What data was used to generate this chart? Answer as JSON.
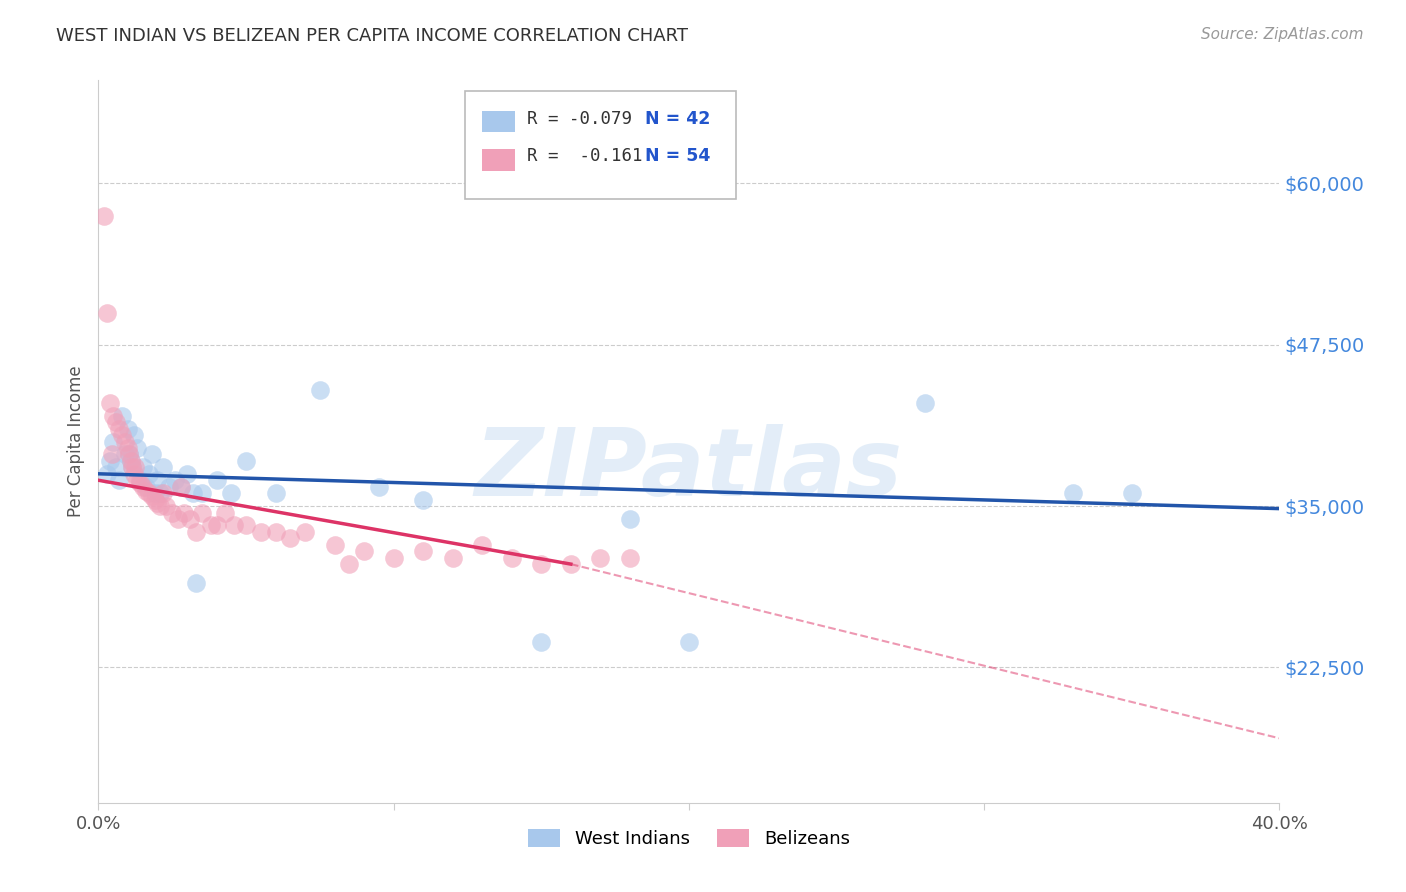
{
  "title": "WEST INDIAN VS BELIZEAN PER CAPITA INCOME CORRELATION CHART",
  "source": "Source: ZipAtlas.com",
  "ylabel": "Per Capita Income",
  "xlim": [
    0.0,
    40.0
  ],
  "ylim": [
    12000,
    68000
  ],
  "yticks": [
    22500,
    35000,
    47500,
    60000
  ],
  "ytick_labels": [
    "$22,500",
    "$35,000",
    "$47,500",
    "$60,000"
  ],
  "watermark": "ZIPatlas",
  "blue_color": "#A8C8EC",
  "pink_color": "#F0A0B8",
  "blue_line_color": "#2255AA",
  "pink_line_color": "#DD3366",
  "background_color": "#FFFFFF",
  "wi_x": [
    0.3,
    0.4,
    0.5,
    0.6,
    0.7,
    0.8,
    0.9,
    1.0,
    1.1,
    1.2,
    1.3,
    1.4,
    1.5,
    1.6,
    1.7,
    1.8,
    1.9,
    2.0,
    2.1,
    2.2,
    2.4,
    2.6,
    2.8,
    3.0,
    3.2,
    3.5,
    4.0,
    4.5,
    5.0,
    6.0,
    7.5,
    9.5,
    11.0,
    15.0,
    18.0,
    20.0,
    28.0,
    33.0,
    35.0,
    1.05,
    1.15,
    3.3
  ],
  "wi_y": [
    37500,
    38500,
    40000,
    38000,
    37000,
    42000,
    39000,
    41000,
    38500,
    40500,
    39500,
    37000,
    38000,
    36500,
    37500,
    39000,
    36000,
    37000,
    36000,
    38000,
    36500,
    37000,
    36500,
    37500,
    36000,
    36000,
    37000,
    36000,
    38500,
    36000,
    44000,
    36500,
    35500,
    24500,
    34000,
    24500,
    43000,
    36000,
    36000,
    39000,
    38000,
    29000
  ],
  "bz_x": [
    0.2,
    0.3,
    0.4,
    0.5,
    0.6,
    0.7,
    0.8,
    0.9,
    1.0,
    1.05,
    1.1,
    1.15,
    1.2,
    1.3,
    1.4,
    1.5,
    1.6,
    1.7,
    1.8,
    1.9,
    2.0,
    2.1,
    2.2,
    2.3,
    2.5,
    2.7,
    2.9,
    3.1,
    3.3,
    3.5,
    3.8,
    4.0,
    4.3,
    4.6,
    5.0,
    5.5,
    6.0,
    6.5,
    7.0,
    8.0,
    9.0,
    10.0,
    11.0,
    12.0,
    13.0,
    14.0,
    15.0,
    16.0,
    17.0,
    18.0,
    0.45,
    1.25,
    2.8,
    8.5
  ],
  "bz_y": [
    57500,
    50000,
    43000,
    42000,
    41500,
    41000,
    40500,
    40000,
    39500,
    39000,
    38500,
    38000,
    37500,
    37000,
    36800,
    36500,
    36200,
    36000,
    35800,
    35500,
    35200,
    35000,
    36000,
    35000,
    34500,
    34000,
    34500,
    34000,
    33000,
    34500,
    33500,
    33500,
    34500,
    33500,
    33500,
    33000,
    33000,
    32500,
    33000,
    32000,
    31500,
    31000,
    31500,
    31000,
    32000,
    31000,
    30500,
    30500,
    31000,
    31000,
    39000,
    38000,
    36500,
    30500
  ],
  "blue_line_x0": 0,
  "blue_line_y0": 37500,
  "blue_line_x1": 40,
  "blue_line_y1": 34800,
  "pink_solid_x0": 0,
  "pink_solid_y0": 37000,
  "pink_solid_x1": 16,
  "pink_solid_y1": 30500,
  "pink_dash_x0": 16,
  "pink_dash_y0": 30500,
  "pink_dash_x1": 40,
  "pink_dash_y1": 17000
}
